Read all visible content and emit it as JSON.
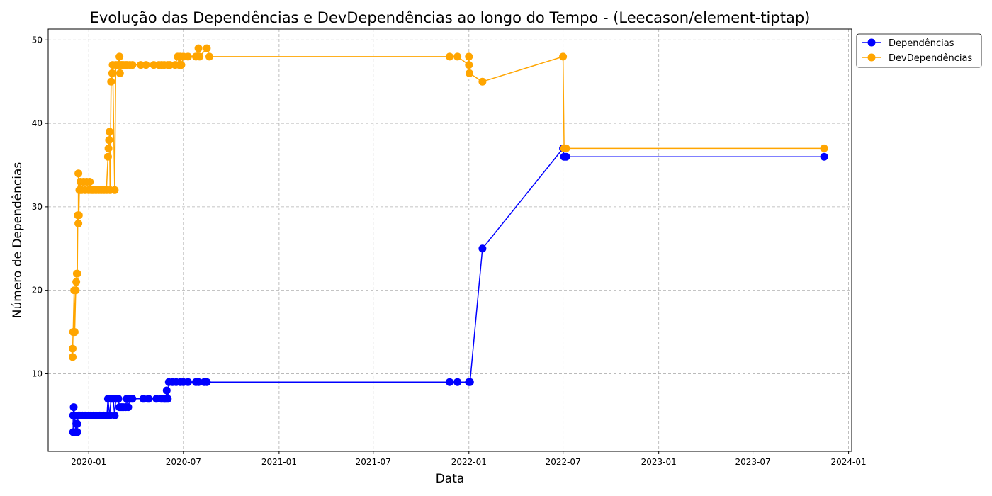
{
  "chart_data": {
    "type": "line",
    "title": "Evolução das Dependências e DevDependências ao longo do Tempo - (Leecason/element-tiptap)",
    "xlabel": "Data",
    "ylabel": "Número de Dependências",
    "xlim": [
      "2019-10-15",
      "2024-01-07"
    ],
    "ylim": [
      0.7,
      51.3
    ],
    "grid": true,
    "legend": "top-right",
    "x_ticks": [
      "2020-01",
      "2020-07",
      "2021-01",
      "2021-07",
      "2022-01",
      "2022-07",
      "2023-01",
      "2023-07",
      "2024-01"
    ],
    "y_ticks": [
      10,
      20,
      30,
      40,
      50
    ],
    "series": [
      {
        "name": "Dependências",
        "color": "#0000ff",
        "points": [
          [
            "2019-12-02",
            3
          ],
          [
            "2019-12-02",
            5
          ],
          [
            "2019-12-03",
            6
          ],
          [
            "2019-12-05",
            5
          ],
          [
            "2019-12-07",
            3
          ],
          [
            "2019-12-08",
            4
          ],
          [
            "2019-12-10",
            3
          ],
          [
            "2019-12-10",
            4
          ],
          [
            "2019-12-12",
            5
          ],
          [
            "2019-12-15",
            5
          ],
          [
            "2019-12-20",
            5
          ],
          [
            "2019-12-25",
            5
          ],
          [
            "2020-01-01",
            5
          ],
          [
            "2020-01-05",
            5
          ],
          [
            "2020-01-10",
            5
          ],
          [
            "2020-01-15",
            5
          ],
          [
            "2020-01-22",
            5
          ],
          [
            "2020-01-30",
            5
          ],
          [
            "2020-02-05",
            5
          ],
          [
            "2020-02-07",
            7
          ],
          [
            "2020-02-10",
            5
          ],
          [
            "2020-02-13",
            7
          ],
          [
            "2020-02-17",
            7
          ],
          [
            "2020-02-20",
            5
          ],
          [
            "2020-02-22",
            7
          ],
          [
            "2020-02-27",
            7
          ],
          [
            "2020-02-29",
            6
          ],
          [
            "2020-03-03",
            6
          ],
          [
            "2020-03-05",
            6
          ],
          [
            "2020-03-08",
            6
          ],
          [
            "2020-03-12",
            6
          ],
          [
            "2020-03-14",
            7
          ],
          [
            "2020-03-17",
            6
          ],
          [
            "2020-03-20",
            7
          ],
          [
            "2020-03-25",
            7
          ],
          [
            "2020-04-15",
            7
          ],
          [
            "2020-04-25",
            7
          ],
          [
            "2020-05-10",
            7
          ],
          [
            "2020-05-20",
            7
          ],
          [
            "2020-05-25",
            7
          ],
          [
            "2020-05-28",
            7
          ],
          [
            "2020-05-30",
            8
          ],
          [
            "2020-06-01",
            7
          ],
          [
            "2020-06-03",
            9
          ],
          [
            "2020-06-10",
            9
          ],
          [
            "2020-06-17",
            9
          ],
          [
            "2020-06-25",
            9
          ],
          [
            "2020-07-01",
            9
          ],
          [
            "2020-07-10",
            9
          ],
          [
            "2020-07-25",
            9
          ],
          [
            "2020-07-30",
            9
          ],
          [
            "2020-08-10",
            9
          ],
          [
            "2020-08-15",
            9
          ],
          [
            "2021-11-25",
            9
          ],
          [
            "2021-12-10",
            9
          ],
          [
            "2022-01-01",
            9
          ],
          [
            "2022-01-03",
            9
          ],
          [
            "2022-01-27",
            25
          ],
          [
            "2022-07-01",
            37
          ],
          [
            "2022-07-03",
            36
          ],
          [
            "2022-07-07",
            36
          ],
          [
            "2023-11-15",
            36
          ]
        ]
      },
      {
        "name": "DevDependências",
        "color": "#ffa500",
        "points": [
          [
            "2019-12-01",
            12
          ],
          [
            "2019-12-01",
            13
          ],
          [
            "2019-12-02",
            15
          ],
          [
            "2019-12-04",
            20
          ],
          [
            "2019-12-05",
            15
          ],
          [
            "2019-12-07",
            20
          ],
          [
            "2019-12-08",
            21
          ],
          [
            "2019-12-09",
            22
          ],
          [
            "2019-12-10",
            22
          ],
          [
            "2019-12-11",
            29
          ],
          [
            "2019-12-12",
            28
          ],
          [
            "2019-12-12",
            34
          ],
          [
            "2019-12-13",
            29
          ],
          [
            "2019-12-14",
            32
          ],
          [
            "2019-12-16",
            33
          ],
          [
            "2019-12-18",
            32
          ],
          [
            "2019-12-22",
            33
          ],
          [
            "2019-12-25",
            32
          ],
          [
            "2019-12-28",
            33
          ],
          [
            "2020-01-01",
            32
          ],
          [
            "2020-01-03",
            33
          ],
          [
            "2020-01-06",
            32
          ],
          [
            "2020-01-10",
            32
          ],
          [
            "2020-01-15",
            32
          ],
          [
            "2020-01-20",
            32
          ],
          [
            "2020-01-25",
            32
          ],
          [
            "2020-01-30",
            32
          ],
          [
            "2020-02-04",
            32
          ],
          [
            "2020-02-07",
            36
          ],
          [
            "2020-02-08",
            37
          ],
          [
            "2020-02-09",
            38
          ],
          [
            "2020-02-10",
            39
          ],
          [
            "2020-02-11",
            32
          ],
          [
            "2020-02-13",
            45
          ],
          [
            "2020-02-15",
            46
          ],
          [
            "2020-02-16",
            47
          ],
          [
            "2020-02-20",
            32
          ],
          [
            "2020-02-22",
            47
          ],
          [
            "2020-02-26",
            47
          ],
          [
            "2020-02-29",
            48
          ],
          [
            "2020-03-01",
            46
          ],
          [
            "2020-03-03",
            47
          ],
          [
            "2020-03-05",
            47
          ],
          [
            "2020-03-08",
            47
          ],
          [
            "2020-03-12",
            47
          ],
          [
            "2020-03-15",
            47
          ],
          [
            "2020-03-20",
            47
          ],
          [
            "2020-03-25",
            47
          ],
          [
            "2020-04-10",
            47
          ],
          [
            "2020-04-20",
            47
          ],
          [
            "2020-05-05",
            47
          ],
          [
            "2020-05-15",
            47
          ],
          [
            "2020-05-20",
            47
          ],
          [
            "2020-05-25",
            47
          ],
          [
            "2020-06-01",
            47
          ],
          [
            "2020-06-05",
            47
          ],
          [
            "2020-06-15",
            47
          ],
          [
            "2020-06-20",
            48
          ],
          [
            "2020-06-23",
            47
          ],
          [
            "2020-06-25",
            48
          ],
          [
            "2020-06-27",
            47
          ],
          [
            "2020-07-01",
            48
          ],
          [
            "2020-07-10",
            48
          ],
          [
            "2020-07-25",
            48
          ],
          [
            "2020-07-30",
            49
          ],
          [
            "2020-08-01",
            48
          ],
          [
            "2020-08-15",
            49
          ],
          [
            "2020-08-20",
            48
          ],
          [
            "2021-11-25",
            48
          ],
          [
            "2021-12-10",
            48
          ],
          [
            "2022-01-01",
            47
          ],
          [
            "2022-01-01",
            48
          ],
          [
            "2022-01-02",
            46
          ],
          [
            "2022-01-27",
            45
          ],
          [
            "2022-07-01",
            48
          ],
          [
            "2022-07-03",
            37
          ],
          [
            "2022-07-07",
            37
          ],
          [
            "2023-11-15",
            37
          ]
        ]
      }
    ]
  }
}
